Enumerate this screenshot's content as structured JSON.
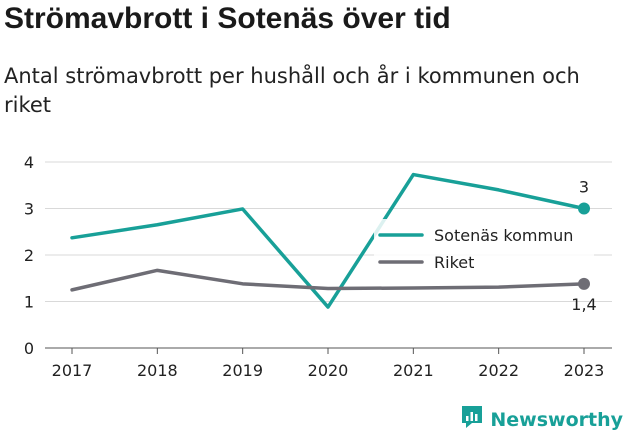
{
  "chart_data": {
    "type": "line",
    "title": "Strömavbrott i Sotenäs över tid",
    "subtitle": "Antal strömavbrott per hushåll och år i kommunen och riket",
    "x": [
      "2017",
      "2018",
      "2019",
      "2020",
      "2021",
      "2022",
      "2023"
    ],
    "yticks": [
      "0",
      "1",
      "2",
      "3",
      "4"
    ],
    "ylim": [
      0,
      4
    ],
    "grid": true,
    "legend_position": "right, inside plot",
    "series": [
      {
        "name": "Sotenäs kommun",
        "color": "#18a098",
        "values": [
          2.37,
          2.65,
          2.99,
          0.88,
          3.73,
          3.4,
          3.0
        ],
        "end_label": "3"
      },
      {
        "name": "Riket",
        "color": "#6e6d75",
        "values": [
          1.25,
          1.67,
          1.38,
          1.28,
          1.29,
          1.31,
          1.38
        ],
        "end_label": "1,4"
      }
    ]
  },
  "brand": {
    "name": "Newsworthy",
    "color": "#18a098"
  }
}
